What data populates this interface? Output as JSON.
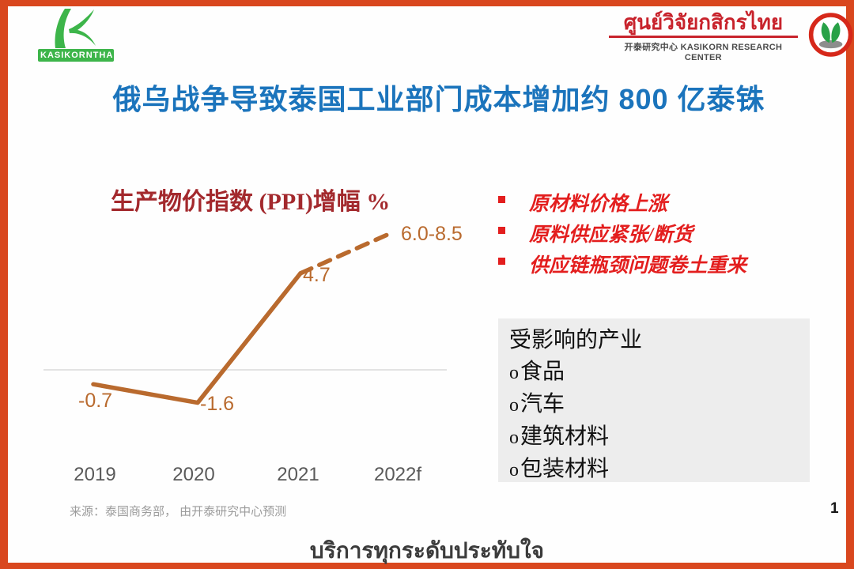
{
  "slide": {
    "title": "俄乌战争导致泰国工业部门成本增加约 800 亿泰铢",
    "source": "来源：泰国商务部， 由开泰研究中心预测",
    "page_number": "1",
    "footer_thai": "บริการทุกระดับประทับใจ"
  },
  "header": {
    "left_logo": {
      "brand": "KASIKORNTHAI",
      "icon": "kasikorn-k-icon",
      "green": "#3DB54A"
    },
    "right_logo": {
      "thai_name": "ศูนย์วิจัยกสิกรไทย",
      "sub_line": "开泰研究中心 KASIKORN RESEARCH CENTER",
      "icon": "sprout-emblem-icon",
      "ring_red": "#D6281A"
    }
  },
  "chart_data": {
    "type": "line",
    "title": "生产物价指数 (PPI)增幅 %",
    "categories": [
      "2019",
      "2020",
      "2021",
      "2022f"
    ],
    "values": [
      -0.7,
      -1.6,
      4.7,
      6.7
    ],
    "point_labels": [
      "-0.7",
      "-1.6",
      "4.7",
      "6.0-8.5"
    ],
    "forecast_range": "6.0-8.5",
    "forecast_category": "2022f",
    "solid_segment_indices": [
      0,
      2
    ],
    "dashed_segment_indices": [
      2,
      3
    ],
    "line_color": "#B96A2E",
    "baseline_value": 0,
    "grid": "zero-line-only",
    "ylim": [
      -3,
      9
    ],
    "xlabel": "",
    "ylabel": "生产物价指数 (PPI)增幅 %"
  },
  "bullets": {
    "color": "#E31E1E",
    "items": [
      "原材料价格上涨",
      "原料供应紧张/断货",
      "供应链瓶颈问题卷土重来"
    ]
  },
  "affected_industries": {
    "header": "受影响的产业",
    "bullet_prefix": "o",
    "items": [
      "食品",
      "汽车",
      "建筑材料",
      "包装材料"
    ],
    "bg_color": "#EDEDED"
  },
  "colors": {
    "border": "#D9471E",
    "title_blue": "#1B74BC",
    "chart_title_red": "#A3292D",
    "axis_gray": "#5A5A5A",
    "source_gray": "#9C9C9C"
  }
}
